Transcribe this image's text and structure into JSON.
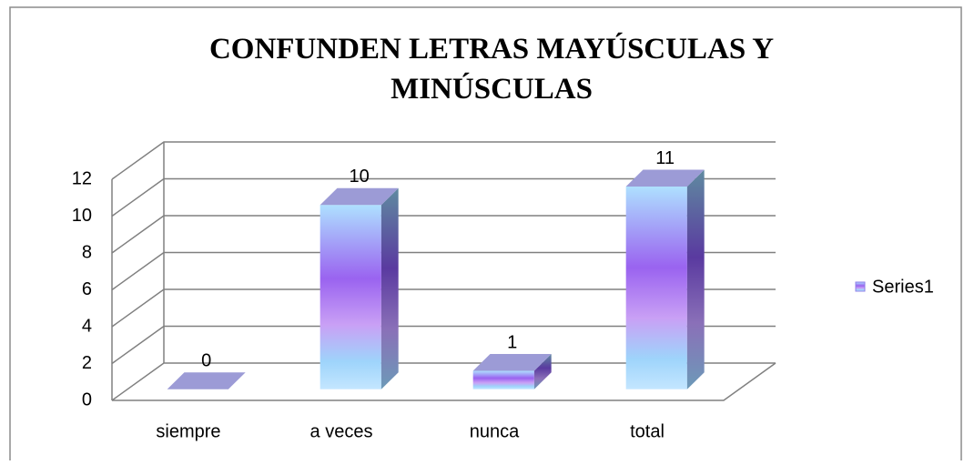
{
  "chart_data": {
    "type": "bar",
    "title": "CONFUNDEN LETRAS MAYÚSCULAS Y MINÚSCULAS",
    "categories": [
      "siempre",
      "a veces",
      "nunca",
      "total"
    ],
    "series": [
      {
        "name": "Series1",
        "color": "#8f7fe8",
        "values": [
          0,
          10,
          1,
          11
        ]
      }
    ],
    "ylim": [
      0,
      12
    ],
    "yticks": [
      0,
      2,
      4,
      6,
      8,
      10,
      12
    ],
    "grid": true,
    "legend": "right"
  }
}
